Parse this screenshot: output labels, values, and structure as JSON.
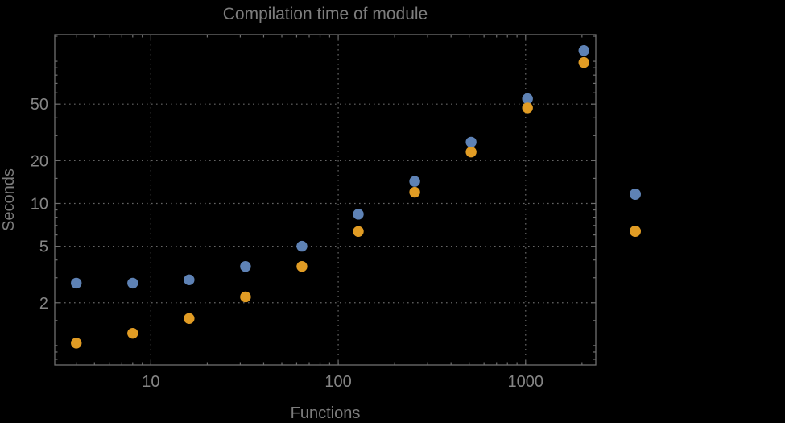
{
  "title": "Compilation time of module",
  "axes": {
    "x_label": "Functions",
    "y_label": "Seconds"
  },
  "legend": {
    "markers": [
      {
        "name": "series-1-marker",
        "label": "",
        "color": "#5e82b5"
      },
      {
        "name": "series-2-marker",
        "label": "",
        "color": "#e19c24"
      }
    ]
  },
  "colors": {
    "background": "#000000",
    "frame": "#6e6e6e",
    "grid": "#666666",
    "tick_text": "#858585",
    "label_text": "#7d7d7d",
    "series_blue": "#5e82b5",
    "series_orange": "#e19c24"
  },
  "chart_data": {
    "type": "scatter",
    "title": "Compilation time of module",
    "xlabel": "Functions",
    "ylabel": "Seconds",
    "x_scale": "log",
    "y_scale": "log",
    "xlim": [
      3.07,
      2370
    ],
    "ylim": [
      0.73,
      154
    ],
    "x_ticks": [
      10,
      100,
      1000
    ],
    "x_tick_labels": [
      "10",
      "100",
      "1000"
    ],
    "y_ticks": [
      2,
      5,
      10,
      20,
      50
    ],
    "y_tick_labels": [
      "2",
      "5",
      "10",
      "20",
      "50"
    ],
    "x_minor_ticks": [
      4,
      5,
      6,
      7,
      8,
      9,
      20,
      30,
      40,
      50,
      60,
      70,
      80,
      90,
      200,
      300,
      400,
      500,
      600,
      700,
      800,
      900,
      2000
    ],
    "y_minor_ticks": [
      0.8,
      0.9,
      1,
      1.5,
      3,
      4,
      6,
      7,
      8,
      9,
      15,
      30,
      40,
      60,
      70,
      80,
      90,
      100,
      150
    ],
    "grid": "dotted-major",
    "legend_position": "right-outside",
    "x": [
      4,
      8,
      16,
      32,
      64,
      128,
      256,
      512,
      1024,
      2048
    ],
    "series": [
      {
        "name": "",
        "color": "#5e82b5",
        "values": [
          2.75,
          2.75,
          2.9,
          3.6,
          5.0,
          8.4,
          14.3,
          27,
          54.5,
          119
        ]
      },
      {
        "name": "",
        "color": "#e19c24",
        "values": [
          1.04,
          1.22,
          1.55,
          2.2,
          3.6,
          6.35,
          12,
          23,
          47,
          98
        ]
      }
    ]
  }
}
